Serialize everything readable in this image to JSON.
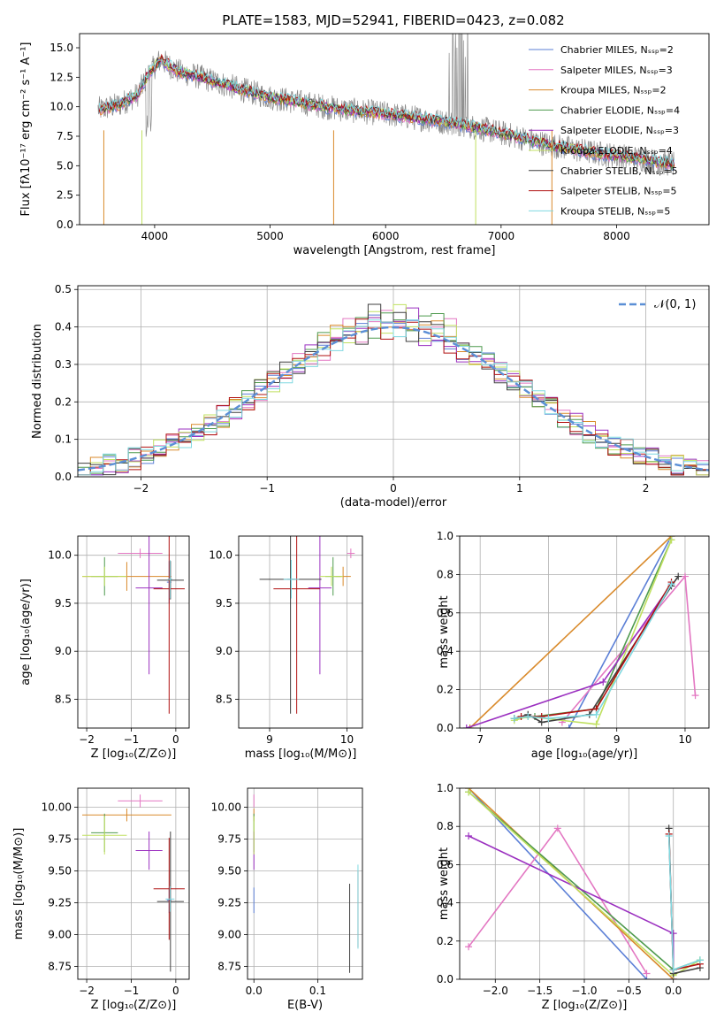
{
  "colors": {
    "Chabrier MILES": "#5b7fd6",
    "Salpeter MILES": "#e377c2",
    "Kroupa MILES": "#d98a2b",
    "Chabrier ELODIE": "#4e9a4e",
    "Salpeter ELODIE": "#9b30c0",
    "Kroupa ELODIE": "#c0e060",
    "Chabrier STELIB": "#3f3f3f",
    "Salpeter STELIB": "#b01010",
    "Kroupa STELIB": "#7fd8e0",
    "normal": "#5b8fd6",
    "data": "#888888"
  },
  "chart_data": [
    {
      "id": "spectrum",
      "type": "line",
      "title": "PLATE=1583, MJD=52941, FIBERID=0423, z=0.082",
      "xlabel": "wavelength [Angstrom, rest frame]",
      "ylabel": "Flux [fλ10⁻¹⁷ erg cm⁻² s⁻¹ A⁻¹]",
      "xlim": [
        3350,
        8800
      ],
      "ylim": [
        0,
        16.2
      ],
      "xticks": [
        "4000",
        "5000",
        "6000",
        "7000",
        "8000"
      ],
      "yticks": [
        "0.0",
        "2.5",
        "5.0",
        "7.5",
        "10.0",
        "12.5",
        "15.0"
      ],
      "legend": [
        "Chabrier MILES, Nₛₛₚ=2",
        "Salpeter MILES, Nₛₛₚ=3",
        "Kroupa MILES, Nₛₛₚ=2",
        "Chabrier ELODIE, Nₛₛₚ=4",
        "Salpeter ELODIE, Nₛₛₚ=3",
        "Kroupa ELODIE, Nₛₛₚ=4",
        "Chabrier STELIB, Nₛₛₚ=5",
        "Salpeter STELIB, Nₛₛₚ=5",
        "Kroupa STELIB, Nₛₛₚ=5"
      ],
      "legend_placement": "top-right",
      "continuum": {
        "x": [
          3550,
          3700,
          3850,
          3950,
          4050,
          4200,
          4400,
          4700,
          5000,
          5300,
          5600,
          6000,
          6300,
          6600,
          6900,
          7200,
          7450,
          7800,
          8200,
          8500
        ],
        "y": [
          9.8,
          10.2,
          11.0,
          12.8,
          14.0,
          13.0,
          12.5,
          11.6,
          10.8,
          10.3,
          9.8,
          9.4,
          9.0,
          8.6,
          8.0,
          7.3,
          6.7,
          6.1,
          5.6,
          5.1
        ]
      }
    },
    {
      "id": "residuals",
      "type": "line",
      "xlabel": "(data-model)/error",
      "ylabel": "Normed distribution",
      "xlim": [
        -2.5,
        2.5
      ],
      "ylim": [
        0,
        0.51
      ],
      "xticks": [
        "−2",
        "−1",
        "0",
        "1",
        "2"
      ],
      "yticks": [
        "0.0",
        "0.1",
        "0.2",
        "0.3",
        "0.4",
        "0.5"
      ],
      "legend": [
        "𝒩(0, 1)"
      ],
      "legend_placement": "top-right",
      "grid": true
    },
    {
      "id": "age_vs_Z",
      "type": "scatter",
      "xlabel": "Z [log₁₀(Z/Z⊙)]",
      "ylabel": "age  [log₁₀(age/yr)]",
      "xlim": [
        -2.2,
        0.3
      ],
      "ylim": [
        8.2,
        10.2
      ],
      "xticks": [
        "−2",
        "−1",
        "0"
      ],
      "yticks": [
        "8.5",
        "9.0",
        "9.5",
        "10.0"
      ],
      "grid": true,
      "points": [
        {
          "model": "Chabrier MILES",
          "x": -0.15,
          "y": 9.72,
          "xerr": 0.05,
          "yerr": 0.22
        },
        {
          "model": "Salpeter MILES",
          "x": -0.8,
          "y": 10.02,
          "xerr": 0.5,
          "yerr": 0.05
        },
        {
          "model": "Kroupa MILES",
          "x": -1.1,
          "y": 9.78,
          "xerr": 1.0,
          "yerr": 0.15
        },
        {
          "model": "Chabrier ELODIE",
          "x": -1.6,
          "y": 9.78,
          "xerr": 0.3,
          "yerr": 0.2
        },
        {
          "model": "Salpeter ELODIE",
          "x": -0.6,
          "y": 9.66,
          "xerr": 0.3,
          "yerr": 0.9
        },
        {
          "model": "Kroupa ELODIE",
          "x": -1.6,
          "y": 9.78,
          "xerr": 0.5,
          "yerr": 0.1
        },
        {
          "model": "Chabrier STELIB",
          "x": -0.12,
          "y": 9.74,
          "xerr": 0.3,
          "yerr": 0.2
        },
        {
          "model": "Salpeter STELIB",
          "x": -0.15,
          "y": 9.65,
          "xerr": 0.35,
          "yerr": 1.3
        },
        {
          "model": "Kroupa STELIB",
          "x": -0.13,
          "y": 9.75,
          "xerr": 0.05,
          "yerr": 0.2
        }
      ]
    },
    {
      "id": "age_vs_mass",
      "type": "scatter",
      "xlabel": "mass [log₁₀(M/M⊙)]",
      "xlim": [
        8.6,
        10.2
      ],
      "ylim": [
        8.2,
        10.2
      ],
      "xticks": [
        "9",
        "10"
      ],
      "yticks": [
        "8.5",
        "9.0",
        "9.5",
        "10.0"
      ],
      "grid": true,
      "points": [
        {
          "model": "Chabrier MILES",
          "x": 9.28,
          "y": 9.75,
          "xerr": 0.05,
          "yerr": 0.2
        },
        {
          "model": "Salpeter MILES",
          "x": 10.05,
          "y": 10.02,
          "xerr": 0.05,
          "yerr": 0.05
        },
        {
          "model": "Kroupa MILES",
          "x": 9.95,
          "y": 9.78,
          "xerr": 0.1,
          "yerr": 0.1
        },
        {
          "model": "Chabrier ELODIE",
          "x": 9.82,
          "y": 9.78,
          "xerr": 0.1,
          "yerr": 0.2
        },
        {
          "model": "Salpeter ELODIE",
          "x": 9.65,
          "y": 9.66,
          "xerr": 0.15,
          "yerr": 0.9
        },
        {
          "model": "Kroupa ELODIE",
          "x": 9.8,
          "y": 9.78,
          "xerr": 0.15,
          "yerr": 0.1
        },
        {
          "model": "Chabrier STELIB",
          "x": 9.27,
          "y": 9.75,
          "xerr": 0.4,
          "yerr": 1.4
        },
        {
          "model": "Salpeter STELIB",
          "x": 9.35,
          "y": 9.65,
          "xerr": 0.3,
          "yerr": 1.3
        },
        {
          "model": "Kroupa STELIB",
          "x": 9.28,
          "y": 9.75,
          "xerr": 0.1,
          "yerr": 0.2
        }
      ]
    },
    {
      "id": "weight_vs_age",
      "type": "line",
      "xlabel": "age  [log₁₀(age/yr)]",
      "ylabel": "mass weight",
      "xlim": [
        6.7,
        10.35
      ],
      "ylim": [
        0,
        1.0
      ],
      "xticks": [
        "7",
        "8",
        "9",
        "10"
      ],
      "yticks": [
        "0.0",
        "0.2",
        "0.4",
        "0.6",
        "0.8",
        "1.0"
      ],
      "grid": true,
      "series": [
        {
          "model": "Chabrier MILES",
          "x": [
            8.3,
            9.8
          ],
          "y": [
            0.0,
            1.0
          ]
        },
        {
          "model": "Salpeter MILES",
          "x": [
            8.2,
            10.0,
            10.15
          ],
          "y": [
            0.03,
            0.79,
            0.17
          ]
        },
        {
          "model": "Kroupa MILES",
          "x": [
            6.85,
            9.8
          ],
          "y": [
            0.0,
            1.0
          ]
        },
        {
          "model": "Chabrier ELODIE",
          "x": [
            7.5,
            7.8,
            8.7,
            9.8
          ],
          "y": [
            0.05,
            0.06,
            0.1,
            0.98
          ]
        },
        {
          "model": "Salpeter ELODIE",
          "x": [
            6.8,
            8.8,
            9.8
          ],
          "y": [
            0.0,
            0.24,
            0.75
          ]
        },
        {
          "model": "Kroupa ELODIE",
          "x": [
            7.5,
            7.7,
            8.7,
            9.8
          ],
          "y": [
            0.04,
            0.06,
            0.02,
            0.98
          ]
        },
        {
          "model": "Chabrier STELIB",
          "x": [
            7.5,
            7.7,
            7.9,
            8.6,
            9.8,
            9.9
          ],
          "y": [
            0.05,
            0.07,
            0.03,
            0.07,
            0.74,
            0.79
          ]
        },
        {
          "model": "Salpeter STELIB",
          "x": [
            7.6,
            7.9,
            8.7,
            9.8
          ],
          "y": [
            0.06,
            0.06,
            0.1,
            0.76
          ]
        },
        {
          "model": "Kroupa STELIB",
          "x": [
            7.5,
            7.7,
            8.0,
            8.7,
            9.8
          ],
          "y": [
            0.05,
            0.06,
            0.05,
            0.07,
            0.75
          ]
        }
      ]
    },
    {
      "id": "mass_vs_Z",
      "type": "scatter",
      "xlabel": "Z [log₁₀(Z/Z⊙)]",
      "ylabel": "mass [log₁₀(M/M⊙)]",
      "xlim": [
        -2.2,
        0.3
      ],
      "ylim": [
        8.65,
        10.15
      ],
      "xticks": [
        "−2",
        "−1",
        "0"
      ],
      "yticks": [
        "8.75",
        "9.00",
        "9.25",
        "9.50",
        "9.75",
        "10.00"
      ],
      "grid": true,
      "points": [
        {
          "model": "Chabrier MILES",
          "x": -0.15,
          "y": 9.27,
          "xerr": 0.05,
          "yerr": 0.1
        },
        {
          "model": "Salpeter MILES",
          "x": -0.8,
          "y": 10.05,
          "xerr": 0.5,
          "yerr": 0.05
        },
        {
          "model": "Kroupa MILES",
          "x": -1.1,
          "y": 9.94,
          "xerr": 1.0,
          "yerr": 0.05
        },
        {
          "model": "Chabrier ELODIE",
          "x": -1.6,
          "y": 9.8,
          "xerr": 0.3,
          "yerr": 0.15
        },
        {
          "model": "Salpeter ELODIE",
          "x": -0.6,
          "y": 9.66,
          "xerr": 0.3,
          "yerr": 0.15
        },
        {
          "model": "Kroupa ELODIE",
          "x": -1.6,
          "y": 9.78,
          "xerr": 0.5,
          "yerr": 0.15
        },
        {
          "model": "Chabrier STELIB",
          "x": -0.12,
          "y": 9.26,
          "xerr": 0.3,
          "yerr": 0.55
        },
        {
          "model": "Salpeter STELIB",
          "x": -0.15,
          "y": 9.36,
          "xerr": 0.35,
          "yerr": 0.4
        },
        {
          "model": "Kroupa STELIB",
          "x": -0.13,
          "y": 9.28,
          "xerr": 0.1,
          "yerr": 0.1
        }
      ]
    },
    {
      "id": "mass_vs_EBV",
      "type": "scatter",
      "xlabel": "E(B-V)",
      "xlim": [
        -0.01,
        0.17
      ],
      "ylim": [
        8.65,
        10.15
      ],
      "xticks": [
        "0.0",
        "0.1"
      ],
      "yticks": [
        "8.75",
        "9.00",
        "9.25",
        "9.50",
        "9.75",
        "10.00"
      ],
      "grid": true,
      "points": [
        {
          "model": "Chabrier MILES",
          "x": 0.0,
          "y": 9.27,
          "xerr": 0.0,
          "yerr": 0.1
        },
        {
          "model": "Salpeter MILES",
          "x": 0.0,
          "y": 10.05,
          "xerr": 0.0,
          "yerr": 0.05
        },
        {
          "model": "Kroupa MILES",
          "x": 0.0,
          "y": 9.94,
          "xerr": 0.0,
          "yerr": 0.05
        },
        {
          "model": "Chabrier ELODIE",
          "x": 0.0,
          "y": 9.8,
          "xerr": 0.0,
          "yerr": 0.15
        },
        {
          "model": "Salpeter ELODIE",
          "x": 0.0,
          "y": 9.66,
          "xerr": 0.0,
          "yerr": 0.15
        },
        {
          "model": "Kroupa ELODIE",
          "x": 0.0,
          "y": 9.78,
          "xerr": 0.0,
          "yerr": 0.15
        },
        {
          "model": "Chabrier STELIB",
          "x": 0.15,
          "y": 9.05,
          "xerr": 0.0,
          "yerr": 0.35
        },
        {
          "model": "Salpeter STELIB",
          "x": 0.163,
          "y": 9.2,
          "xerr": 0.0,
          "yerr": 0.3
        },
        {
          "model": "Kroupa STELIB",
          "x": 0.163,
          "y": 9.22,
          "xerr": 0.0,
          "yerr": 0.33
        }
      ]
    },
    {
      "id": "weight_vs_Z",
      "type": "line",
      "xlabel": "Z [log₁₀(Z/Z⊙)]",
      "ylabel": "mass weight",
      "xlim": [
        -2.4,
        0.4
      ],
      "ylim": [
        0,
        1.0
      ],
      "xticks": [
        "−2.0",
        "−1.5",
        "−1.0",
        "−0.5",
        "0.0"
      ],
      "yticks": [
        "0.0",
        "0.2",
        "0.4",
        "0.6",
        "0.8",
        "1.0"
      ],
      "grid": true,
      "series": [
        {
          "model": "Chabrier MILES",
          "x": [
            -2.3,
            -0.3
          ],
          "y": [
            1.0,
            0.0
          ]
        },
        {
          "model": "Salpeter MILES",
          "x": [
            -2.3,
            -1.3,
            -0.3
          ],
          "y": [
            0.17,
            0.79,
            0.03
          ]
        },
        {
          "model": "Kroupa MILES",
          "x": [
            -2.3,
            0.0
          ],
          "y": [
            1.0,
            0.0
          ]
        },
        {
          "model": "Chabrier ELODIE",
          "x": [
            -2.3,
            0.0,
            0.3
          ],
          "y": [
            0.98,
            0.05,
            0.1
          ]
        },
        {
          "model": "Salpeter ELODIE",
          "x": [
            -2.3,
            0.0,
            0.0
          ],
          "y": [
            0.75,
            0.24,
            0.0
          ]
        },
        {
          "model": "Kroupa ELODIE",
          "x": [
            -2.3,
            0.0,
            0.3
          ],
          "y": [
            0.98,
            0.02,
            0.1
          ]
        },
        {
          "model": "Chabrier STELIB",
          "x": [
            -0.05,
            0.0,
            0.3
          ],
          "y": [
            0.79,
            0.03,
            0.06
          ]
        },
        {
          "model": "Salpeter STELIB",
          "x": [
            -0.05,
            0.0,
            0.3
          ],
          "y": [
            0.76,
            0.05,
            0.08
          ]
        },
        {
          "model": "Kroupa STELIB",
          "x": [
            -0.05,
            0.0,
            0.3
          ],
          "y": [
            0.75,
            0.05,
            0.1
          ]
        }
      ]
    }
  ]
}
